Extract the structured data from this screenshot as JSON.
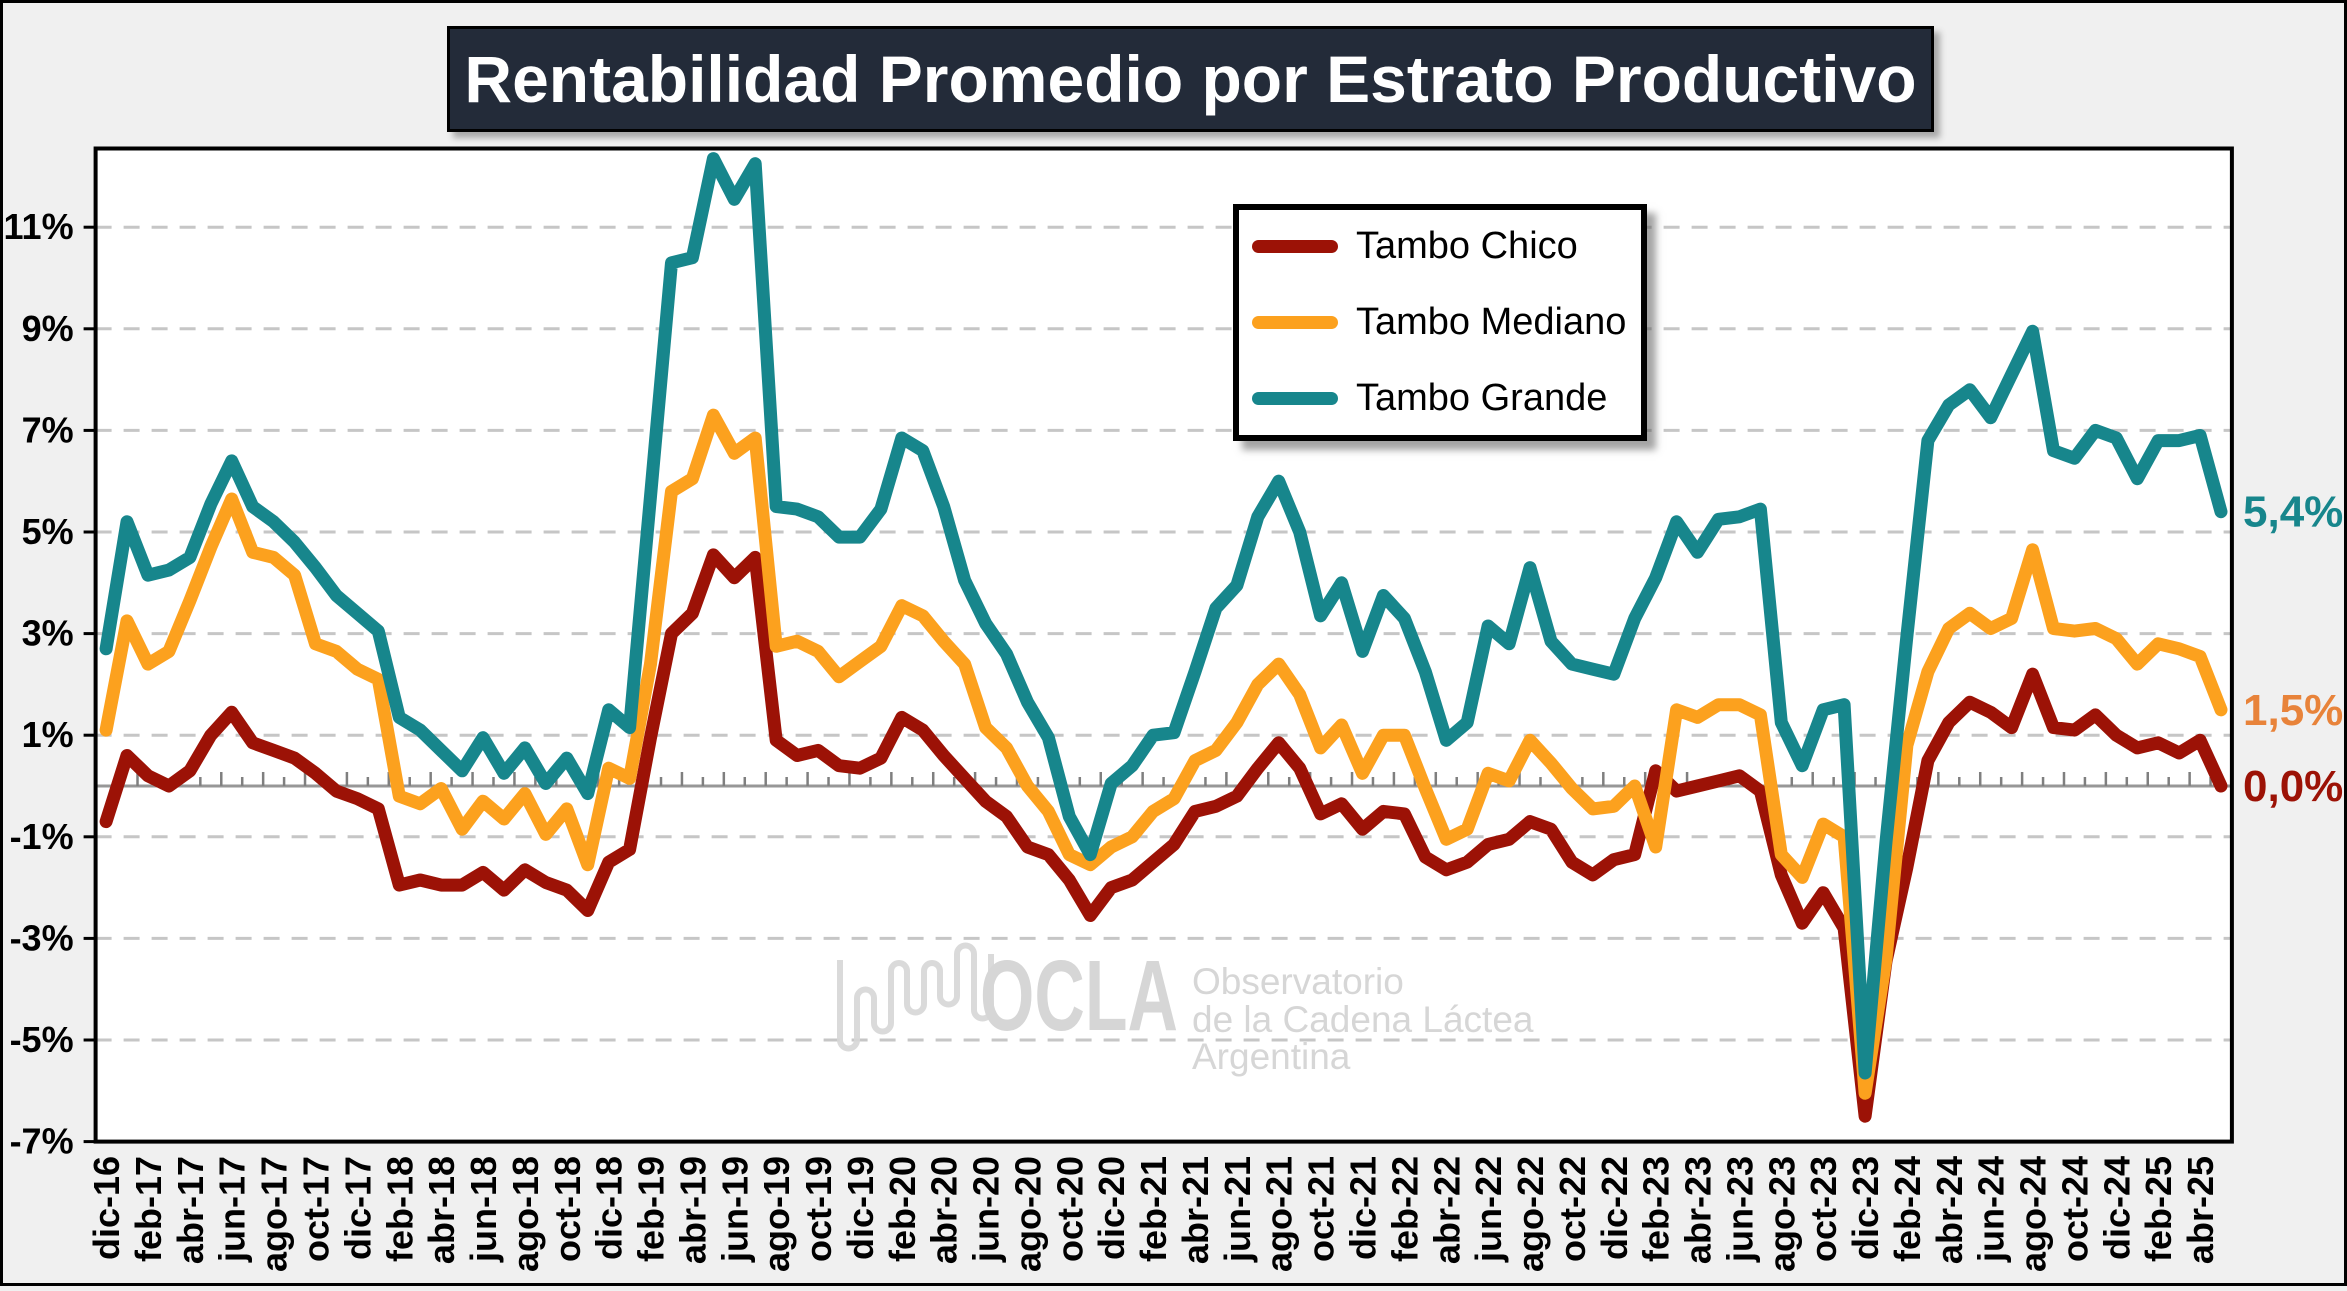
{
  "title": "Rentabilidad Promedio por Estrato Productivo",
  "legend": {
    "items": [
      {
        "label": "Tambo Chico",
        "color": "#9c1206"
      },
      {
        "label": "Tambo Mediano",
        "color": "#fca11e"
      },
      {
        "label": "Tambo Grande",
        "color": "#17868c"
      }
    ]
  },
  "end_labels": [
    {
      "text": "5,4%",
      "color": "#17868c",
      "value": 5.4
    },
    {
      "text": "1,5%",
      "color": "#e8833a",
      "value": 1.5
    },
    {
      "text": "0,0%",
      "color": "#9c1206",
      "value": 0.0
    }
  ],
  "watermark": {
    "acronym": "OCLA",
    "lines": [
      "Observatorio",
      "de la Cadena Láctea",
      "Argentina"
    ],
    "color": "#d6d6d6"
  },
  "chart_data": {
    "type": "line",
    "title": "Rentabilidad Promedio por Estrato Productivo",
    "xlabel": "",
    "ylabel": "",
    "ylim": [
      -7,
      12.5
    ],
    "y_ticks": [
      11,
      9,
      7,
      5,
      3,
      1,
      -1,
      -3,
      -5,
      -7
    ],
    "y_tick_labels": [
      "11%",
      "9%",
      "7%",
      "5%",
      "3%",
      "1%",
      "-1%",
      "-3%",
      "-5%",
      "-7%"
    ],
    "grid": true,
    "legend_position": "upper middle",
    "x_tick_label_every": 2,
    "categories": [
      "dic-16",
      "ene-17",
      "feb-17",
      "mar-17",
      "abr-17",
      "may-17",
      "jun-17",
      "jul-17",
      "ago-17",
      "sep-17",
      "oct-17",
      "nov-17",
      "dic-17",
      "ene-18",
      "feb-18",
      "mar-18",
      "abr-18",
      "may-18",
      "jun-18",
      "jul-18",
      "ago-18",
      "sep-18",
      "oct-18",
      "nov-18",
      "dic-18",
      "ene-19",
      "feb-19",
      "mar-19",
      "abr-19",
      "may-19",
      "jun-19",
      "jul-19",
      "ago-19",
      "sep-19",
      "oct-19",
      "nov-19",
      "dic-19",
      "ene-20",
      "feb-20",
      "mar-20",
      "abr-20",
      "may-20",
      "jun-20",
      "jul-20",
      "ago-20",
      "sep-20",
      "oct-20",
      "nov-20",
      "dic-20",
      "ene-21",
      "feb-21",
      "mar-21",
      "abr-21",
      "may-21",
      "jun-21",
      "jul-21",
      "ago-21",
      "sep-21",
      "oct-21",
      "nov-21",
      "dic-21",
      "ene-22",
      "feb-22",
      "mar-22",
      "abr-22",
      "may-22",
      "jun-22",
      "jul-22",
      "ago-22",
      "sep-22",
      "oct-22",
      "nov-22",
      "dic-22",
      "ene-23",
      "feb-23",
      "mar-23",
      "abr-23",
      "may-23",
      "jun-23",
      "jul-23",
      "ago-23",
      "sep-23",
      "oct-23",
      "nov-23",
      "dic-23",
      "ene-24",
      "feb-24",
      "mar-24",
      "abr-24",
      "may-24",
      "jun-24",
      "jul-24",
      "ago-24",
      "sep-24",
      "oct-24",
      "nov-24",
      "dic-24",
      "ene-25",
      "feb-25",
      "mar-25",
      "abr-25",
      "may-25"
    ],
    "series": [
      {
        "name": "Tambo Chico",
        "color": "#9c1206",
        "values": [
          -0.7,
          0.6,
          0.2,
          0.0,
          0.3,
          1.0,
          1.45,
          0.85,
          0.7,
          0.55,
          0.25,
          -0.1,
          -0.25,
          -0.45,
          -1.95,
          -1.85,
          -1.95,
          -1.95,
          -1.7,
          -2.05,
          -1.65,
          -1.9,
          -2.05,
          -2.45,
          -1.5,
          -1.25,
          0.95,
          3.0,
          3.4,
          4.55,
          4.1,
          4.5,
          0.9,
          0.6,
          0.7,
          0.4,
          0.35,
          0.55,
          1.35,
          1.1,
          0.6,
          0.15,
          -0.3,
          -0.6,
          -1.2,
          -1.35,
          -1.85,
          -2.55,
          -2.0,
          -1.85,
          -1.5,
          -1.15,
          -0.5,
          -0.4,
          -0.2,
          0.35,
          0.85,
          0.35,
          -0.55,
          -0.35,
          -0.85,
          -0.5,
          -0.55,
          -1.4,
          -1.65,
          -1.5,
          -1.15,
          -1.05,
          -0.7,
          -0.85,
          -1.5,
          -1.75,
          -1.45,
          -1.35,
          0.3,
          -0.1,
          0.0,
          0.1,
          0.2,
          -0.1,
          -1.75,
          -2.7,
          -2.1,
          -2.8,
          -6.5,
          -3.45,
          -1.6,
          0.5,
          1.25,
          1.65,
          1.45,
          1.15,
          2.2,
          1.15,
          1.1,
          1.4,
          1.0,
          0.75,
          0.85,
          0.65,
          0.9,
          0.0
        ]
      },
      {
        "name": "Tambo Mediano",
        "color": "#fca11e",
        "values": [
          1.1,
          3.25,
          2.4,
          2.65,
          3.65,
          4.7,
          5.65,
          4.6,
          4.5,
          4.15,
          2.8,
          2.65,
          2.3,
          2.1,
          -0.2,
          -0.35,
          -0.05,
          -0.85,
          -0.3,
          -0.65,
          -0.15,
          -0.95,
          -0.45,
          -1.55,
          0.35,
          0.15,
          2.4,
          5.8,
          6.05,
          7.3,
          6.55,
          6.85,
          2.75,
          2.85,
          2.65,
          2.15,
          2.45,
          2.75,
          3.55,
          3.35,
          2.85,
          2.4,
          1.15,
          0.75,
          0.0,
          -0.5,
          -1.35,
          -1.55,
          -1.2,
          -1.0,
          -0.5,
          -0.25,
          0.5,
          0.7,
          1.25,
          2.0,
          2.4,
          1.8,
          0.75,
          1.2,
          0.25,
          1.0,
          1.0,
          -0.05,
          -1.05,
          -0.85,
          0.25,
          0.1,
          0.9,
          0.45,
          -0.05,
          -0.45,
          -0.4,
          0.0,
          -1.2,
          1.5,
          1.35,
          1.6,
          1.6,
          1.4,
          -1.35,
          -1.8,
          -0.75,
          -1.0,
          -6.05,
          -3.4,
          0.8,
          2.25,
          3.1,
          3.4,
          3.1,
          3.3,
          4.65,
          3.1,
          3.05,
          3.1,
          2.9,
          2.4,
          2.8,
          2.7,
          2.55,
          1.5
        ]
      },
      {
        "name": "Tambo Grande",
        "color": "#17868c",
        "values": [
          2.7,
          5.2,
          4.15,
          4.25,
          4.5,
          5.55,
          6.4,
          5.5,
          5.2,
          4.8,
          4.3,
          3.75,
          3.4,
          3.05,
          1.35,
          1.1,
          0.7,
          0.3,
          0.95,
          0.25,
          0.75,
          0.05,
          0.55,
          -0.15,
          1.5,
          1.15,
          5.7,
          10.3,
          10.4,
          12.35,
          11.55,
          12.25,
          5.5,
          5.45,
          5.3,
          4.9,
          4.9,
          5.45,
          6.85,
          6.6,
          5.5,
          4.05,
          3.2,
          2.6,
          1.65,
          0.95,
          -0.6,
          -1.35,
          0.05,
          0.4,
          1.0,
          1.05,
          2.25,
          3.5,
          3.95,
          5.3,
          6.0,
          5.0,
          3.35,
          4.0,
          2.65,
          3.75,
          3.3,
          2.25,
          0.9,
          1.25,
          3.15,
          2.8,
          4.3,
          2.85,
          2.4,
          2.3,
          2.2,
          3.3,
          4.1,
          5.2,
          4.6,
          5.25,
          5.3,
          5.45,
          1.25,
          0.4,
          1.5,
          1.6,
          -5.65,
          -1.1,
          2.95,
          6.8,
          7.5,
          7.8,
          7.25,
          8.1,
          8.95,
          6.6,
          6.45,
          7.0,
          6.85,
          6.05,
          6.8,
          6.8,
          6.9,
          5.4
        ]
      }
    ]
  }
}
